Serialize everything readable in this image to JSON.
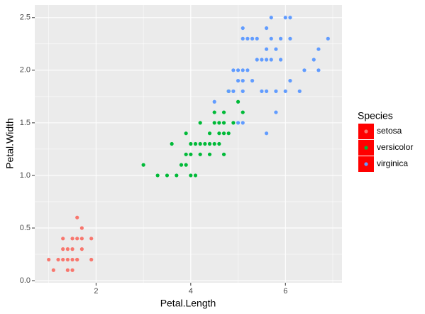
{
  "chart_data": {
    "type": "scatter",
    "x_label": "Petal.Length",
    "y_label": "Petal.Width",
    "legend_title": "Species",
    "legend": "right",
    "grid": true,
    "xlim": [
      0.705,
      7.195
    ],
    "ylim": [
      -0.02,
      2.62
    ],
    "xticks": [
      2,
      4,
      6
    ],
    "yticks": [
      {
        "value": 0,
        "label": "0.0"
      },
      0.5,
      {
        "value": 1,
        "label": "1.0"
      },
      1.5,
      {
        "value": 2,
        "label": "2.0"
      },
      2.5
    ],
    "series": [
      {
        "name": "setosa",
        "color": "#F8766D",
        "x": [
          1.4,
          1.3,
          1.5,
          1.7,
          1.4,
          1.5,
          1.1,
          1.2,
          1.4,
          1.7,
          1.5,
          1.0,
          1.7,
          1.9,
          1.6,
          1.6,
          1.5,
          1.3,
          1.3,
          1.6,
          1.9,
          1.6
        ],
        "y": [
          0.2,
          0.2,
          0.2,
          0.4,
          0.3,
          0.1,
          0.1,
          0.2,
          0.1,
          0.3,
          0.4,
          0.2,
          0.5,
          0.2,
          0.2,
          0.4,
          0.3,
          0.3,
          0.4,
          0.6,
          0.4,
          0.2
        ]
      },
      {
        "name": "versicolor",
        "color": "#00BA38",
        "x": [
          4.7,
          4.5,
          4.9,
          4.0,
          4.6,
          4.5,
          4.7,
          3.3,
          4.6,
          3.9,
          3.5,
          4.2,
          4.0,
          3.6,
          4.4,
          4.1,
          3.9,
          4.8,
          4.7,
          4.3,
          4.8,
          5.0,
          3.8,
          3.7,
          3.9,
          5.1,
          4.5,
          4.7,
          4.4,
          4.1,
          4.4,
          4.6,
          4.0,
          4.2,
          4.2,
          3.0
        ],
        "y": [
          1.4,
          1.5,
          1.5,
          1.3,
          1.5,
          1.3,
          1.6,
          1.0,
          1.3,
          1.4,
          1.0,
          1.5,
          1.0,
          1.3,
          1.4,
          1.0,
          1.1,
          1.8,
          1.2,
          1.3,
          1.4,
          1.7,
          1.1,
          1.0,
          1.2,
          1.6,
          1.6,
          1.5,
          1.3,
          1.3,
          1.2,
          1.4,
          1.2,
          1.3,
          1.2,
          1.1
        ]
      },
      {
        "name": "virginica",
        "color": "#619CFF",
        "x": [
          6.0,
          5.1,
          5.9,
          5.6,
          5.8,
          6.6,
          4.5,
          6.3,
          5.8,
          6.1,
          5.1,
          5.3,
          5.5,
          5.0,
          5.1,
          5.3,
          5.5,
          6.7,
          6.9,
          5.0,
          5.7,
          4.9,
          6.7,
          4.9,
          5.7,
          6.0,
          4.8,
          5.6,
          5.8,
          6.1,
          6.4,
          5.6,
          5.1,
          5.6,
          6.1,
          5.6,
          5.4,
          5.1,
          5.9,
          5.7,
          5.2,
          5.0,
          5.2,
          5.4,
          5.1
        ],
        "y": [
          2.5,
          1.9,
          2.1,
          1.8,
          2.2,
          2.1,
          1.7,
          1.8,
          1.8,
          2.5,
          2.0,
          1.9,
          2.1,
          2.0,
          2.4,
          2.3,
          1.8,
          2.2,
          2.3,
          1.5,
          2.3,
          2.0,
          2.0,
          1.8,
          2.1,
          1.8,
          1.8,
          2.1,
          1.6,
          1.9,
          2.0,
          2.2,
          1.5,
          1.4,
          2.3,
          2.4,
          2.1,
          2.3,
          2.3,
          2.5,
          2.3,
          1.9,
          2.0,
          2.3,
          1.8
        ]
      }
    ]
  }
}
